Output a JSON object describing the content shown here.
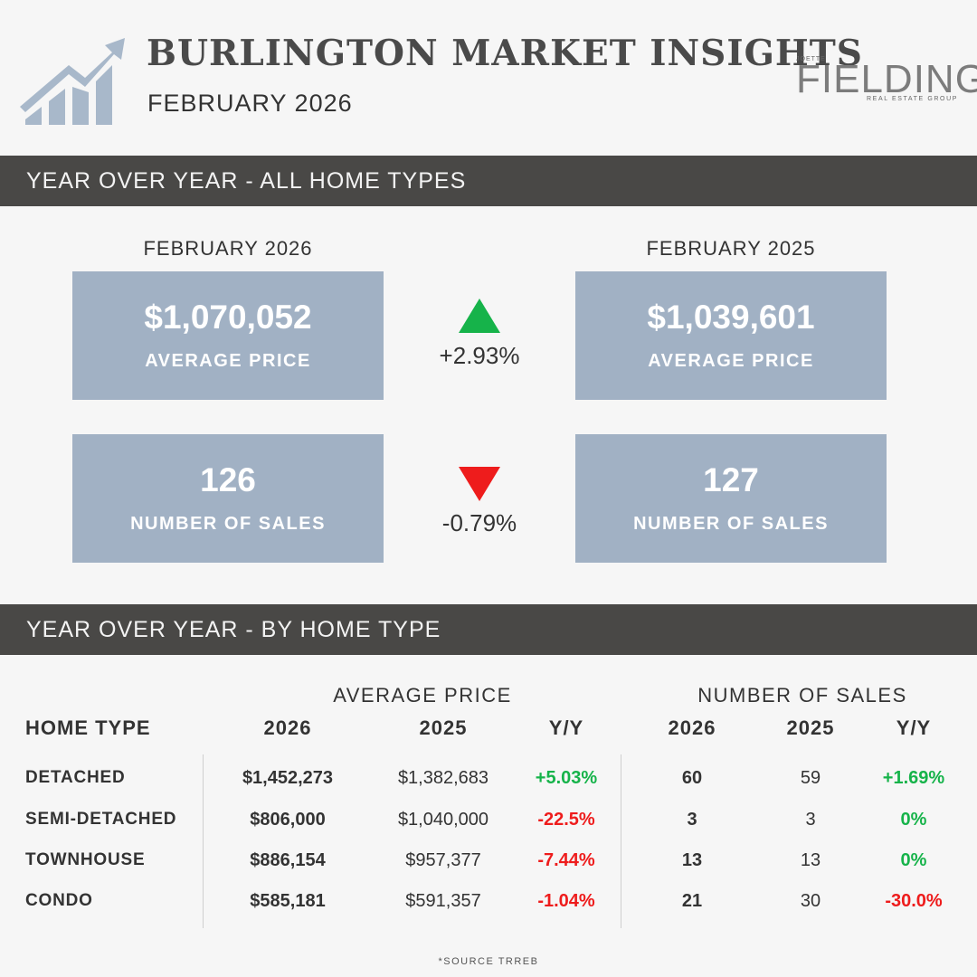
{
  "header": {
    "title": "BURLINGTON MARKET INSIGHTS",
    "subtitle": "FEBRUARY 2026",
    "brand_top": "JOETTE",
    "brand_name": "FIELDING",
    "brand_sub": "REAL ESTATE GROUP",
    "icons": [
      "growth-chart-arrow-icon"
    ]
  },
  "section_all": {
    "title": "YEAR OVER YEAR - ALL HOME TYPES",
    "period_current": "FEBRUARY 2026",
    "period_previous": "FEBRUARY 2025",
    "price_current": "$1,070,052",
    "price_previous": "$1,039,601",
    "price_label": "AVERAGE PRICE",
    "price_change": "+2.93%",
    "sales_current": "126",
    "sales_previous": "127",
    "sales_label": "NUMBER OF SALES",
    "sales_change": "-0.79%"
  },
  "section_type": {
    "title": "YEAR OVER YEAR - BY HOME TYPE",
    "group_price": "AVERAGE PRICE",
    "group_sales": "NUMBER OF SALES",
    "columns": [
      "HOME TYPE",
      "2026",
      "2025",
      "Y/Y",
      "2026",
      "2025",
      "Y/Y"
    ],
    "rows": [
      {
        "type": "DETACHED",
        "p26": "$1,452,273",
        "p25": "$1,382,683",
        "pyy": "+5.03%",
        "s26": "60",
        "s25": "59",
        "syy": "+1.69%"
      },
      {
        "type": "SEMI-DETACHED",
        "p26": "$806,000",
        "p25": "$1,040,000",
        "pyy": "-22.5%",
        "s26": "3",
        "s25": "3",
        "syy": "0%"
      },
      {
        "type": "TOWNHOUSE",
        "p26": "$886,154",
        "p25": "$957,377",
        "pyy": "-7.44%",
        "s26": "13",
        "s25": "13",
        "syy": "0%"
      },
      {
        "type": "CONDO",
        "p26": "$585,181",
        "p25": "$591,357",
        "pyy": "-1.04%",
        "s26": "21",
        "s25": "30",
        "syy": "-30.0%"
      }
    ]
  },
  "colors": {
    "positive": "#16b34a",
    "negative": "#ee1c1c",
    "box": "#a1b1c4",
    "bar": "#494846"
  },
  "footer": {
    "source": "*SOURCE TRREB"
  }
}
